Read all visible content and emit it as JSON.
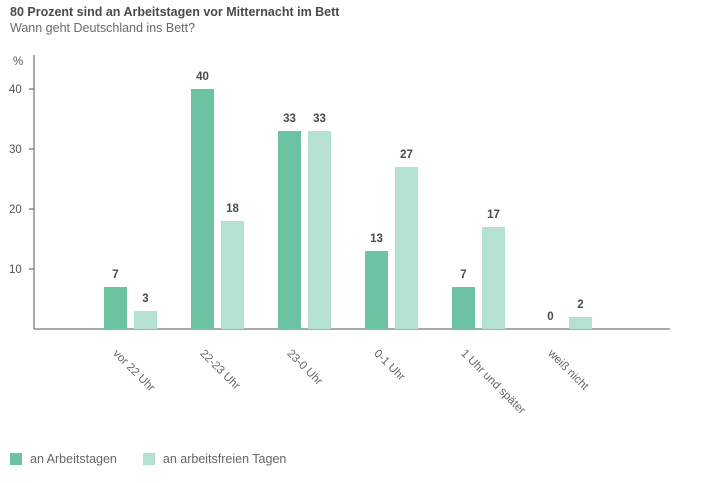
{
  "chart_data": {
    "type": "bar",
    "title": "80 Prozent sind an Arbeitstagen vor Mitternacht im Bett",
    "subtitle": "Wann geht Deutschland ins Bett?",
    "ylabel": "%",
    "xlabel": "",
    "ylim": [
      0,
      45
    ],
    "yticks": [
      10,
      20,
      30,
      40
    ],
    "categories": [
      "vor 22 Uhr",
      "22-23 Uhr",
      "23-0 Uhr",
      "0-1 Uhr",
      "1 Uhr und später",
      "weiß nicht"
    ],
    "series": [
      {
        "name": "an Arbeitstagen",
        "color": "#6cc3a1",
        "values": [
          7,
          40,
          33,
          13,
          7,
          0
        ]
      },
      {
        "name": "an arbeitsfreien Tagen",
        "color": "#b5e2d0",
        "values": [
          3,
          18,
          33,
          27,
          17,
          2
        ]
      }
    ],
    "legend": "bottom-left",
    "grid": false
  }
}
